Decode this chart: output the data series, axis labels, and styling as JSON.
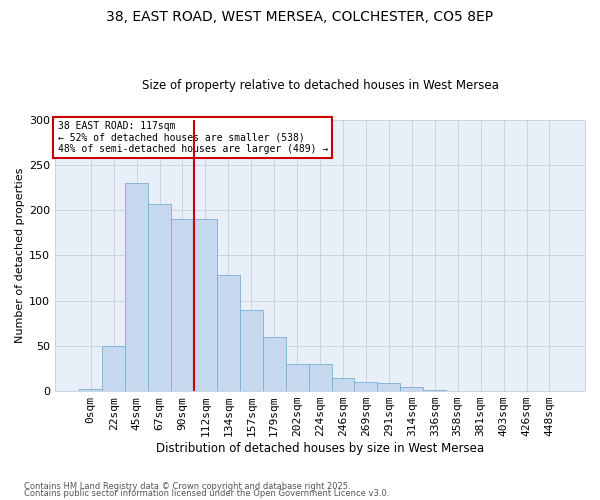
{
  "title1": "38, EAST ROAD, WEST MERSEA, COLCHESTER, CO5 8EP",
  "title2": "Size of property relative to detached houses in West Mersea",
  "xlabel": "Distribution of detached houses by size in West Mersea",
  "ylabel": "Number of detached properties",
  "bar_labels": [
    "0sqm",
    "22sqm",
    "45sqm",
    "67sqm",
    "90sqm",
    "112sqm",
    "134sqm",
    "157sqm",
    "179sqm",
    "202sqm",
    "224sqm",
    "246sqm",
    "269sqm",
    "291sqm",
    "314sqm",
    "336sqm",
    "358sqm",
    "381sqm",
    "403sqm",
    "426sqm",
    "448sqm"
  ],
  "bar_values": [
    2,
    50,
    230,
    207,
    190,
    190,
    128,
    90,
    60,
    30,
    30,
    14,
    10,
    9,
    4,
    1,
    0,
    0,
    0,
    0,
    0
  ],
  "bar_color": "#c5d8ee",
  "bar_edge_color": "#7aafd4",
  "grid_color": "#c8d4e0",
  "plot_bg_color": "#e8eff8",
  "fig_bg_color": "#ffffff",
  "vline_x_idx": 5,
  "vline_color": "#cc0000",
  "annotation_text": "38 EAST ROAD: 117sqm\n← 52% of detached houses are smaller (538)\n48% of semi-detached houses are larger (489) →",
  "annotation_edge_color": "#cc0000",
  "footer1": "Contains HM Land Registry data © Crown copyright and database right 2025.",
  "footer2": "Contains public sector information licensed under the Open Government Licence v3.0.",
  "ylim": [
    0,
    300
  ],
  "yticks": [
    0,
    50,
    100,
    150,
    200,
    250,
    300
  ]
}
